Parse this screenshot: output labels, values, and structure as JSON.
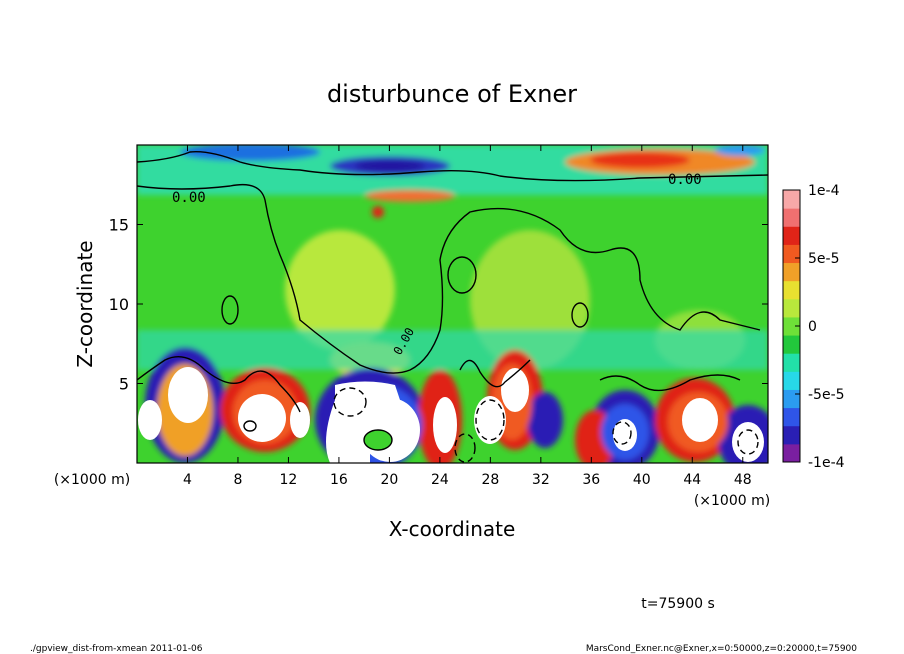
{
  "chart_data": {
    "type": "heatmap",
    "title": "disturbunce of Exner",
    "xlabel": "X-coordinate",
    "ylabel": "Z-coordinate",
    "x_unit": "(×1000 m)",
    "xlim": [
      0,
      50
    ],
    "ylim": [
      0,
      20
    ],
    "xticks": [
      4,
      8,
      12,
      16,
      20,
      24,
      28,
      32,
      36,
      40,
      44,
      48
    ],
    "yticks": [
      5,
      10,
      15
    ],
    "contour_labels": [
      "0.00",
      "0.00",
      "0.00"
    ],
    "colorbar": {
      "vmin": -0.0001,
      "vmax": 0.0001,
      "ticks": [
        {
          "value": 0.0001,
          "label": "1e-4"
        },
        {
          "value": 5e-05,
          "label": "5e-5"
        },
        {
          "value": 0,
          "label": "0"
        },
        {
          "value": -5e-05,
          "label": "-5e-5"
        },
        {
          "value": -0.0001,
          "label": "-1e-4"
        }
      ],
      "colors": [
        "#7a1fa0",
        "#2a1fb4",
        "#2f55e8",
        "#2b9cf0",
        "#27d8e8",
        "#22e0a8",
        "#22c83c",
        "#6ee038",
        "#b8e83c",
        "#e8e030",
        "#f0a028",
        "#f05a20",
        "#e02418",
        "#f07070",
        "#f8a8a8"
      ]
    },
    "annotation_time": "t=75900 s"
  },
  "footer": {
    "left": "./gpview_dist-from-xmean  2011-01-06",
    "right": "MarsCond_Exner.nc@Exner,x=0:50000,z=0:20000,t=75900"
  }
}
